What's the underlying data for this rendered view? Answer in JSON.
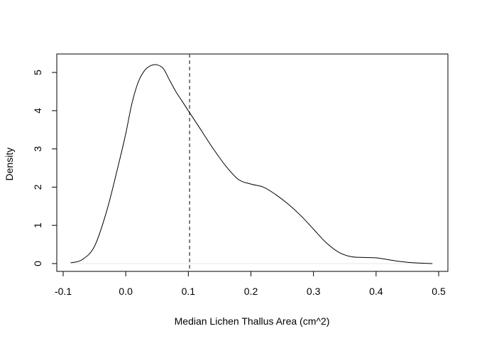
{
  "chart_data": {
    "type": "line",
    "title": "",
    "xlabel": "Median Lichen Thallus Area (cm^2)",
    "ylabel": "Density",
    "xlim": [
      -0.1,
      0.5
    ],
    "ylim": [
      0,
      5.3
    ],
    "x_ticks": [
      -0.1,
      0.0,
      0.1,
      0.2,
      0.3,
      0.4,
      0.5
    ],
    "x_tick_labels": [
      "-0.1",
      "0.0",
      "0.1",
      "0.2",
      "0.3",
      "0.4",
      "0.5"
    ],
    "y_ticks": [
      0,
      1,
      2,
      3,
      4,
      5
    ],
    "y_tick_labels": [
      "0",
      "1",
      "2",
      "3",
      "4",
      "5"
    ],
    "grid": false,
    "zero_line": true,
    "reference_line": {
      "x": 0.102,
      "style": "dashed"
    },
    "series": [
      {
        "x": [
          -0.088,
          -0.07,
          -0.05,
          -0.03,
          -0.01,
          0.0,
          0.01,
          0.02,
          0.03,
          0.04,
          0.05,
          0.06,
          0.07,
          0.08,
          0.09,
          0.1,
          0.12,
          0.14,
          0.16,
          0.18,
          0.2,
          0.22,
          0.24,
          0.26,
          0.28,
          0.3,
          0.32,
          0.34,
          0.36,
          0.38,
          0.4,
          0.42,
          0.44,
          0.46,
          0.49
        ],
        "y": [
          0.02,
          0.1,
          0.45,
          1.4,
          2.7,
          3.4,
          4.2,
          4.75,
          5.05,
          5.18,
          5.2,
          5.1,
          4.8,
          4.5,
          4.25,
          4.0,
          3.5,
          3.0,
          2.55,
          2.2,
          2.08,
          2.0,
          1.8,
          1.55,
          1.25,
          0.9,
          0.55,
          0.3,
          0.18,
          0.16,
          0.15,
          0.1,
          0.05,
          0.02,
          0.0
        ]
      }
    ]
  }
}
